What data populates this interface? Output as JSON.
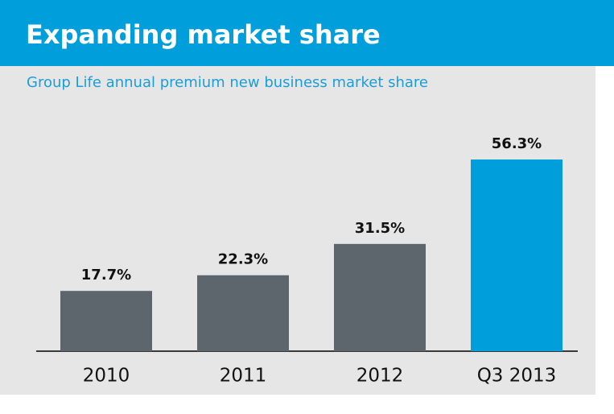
{
  "chart_data": {
    "type": "bar",
    "title": "Expanding market share",
    "subtitle": "Group Life annual premium new business market share",
    "categories": [
      "2010",
      "2011",
      "2012",
      "Q3 2013"
    ],
    "values": [
      17.7,
      22.3,
      31.5,
      56.3
    ],
    "value_labels": [
      "17.7%",
      "22.3%",
      "31.5%",
      "56.3%"
    ],
    "colors": [
      "#5e666d",
      "#5e666d",
      "#5e666d",
      "#009fdb"
    ]
  }
}
